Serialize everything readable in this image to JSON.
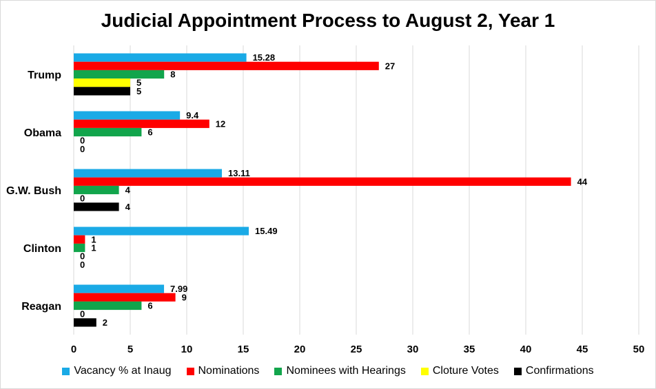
{
  "chart_data": {
    "type": "bar",
    "orientation": "horizontal",
    "title": "Judicial Appointment Process to August 2, Year 1",
    "categories": [
      "Trump",
      "Obama",
      "G.W. Bush",
      "Clinton",
      "Reagan"
    ],
    "series": [
      {
        "name": "Vacancy % at Inaug",
        "color": "#1aaae6",
        "values": [
          15.28,
          9.4,
          13.11,
          15.49,
          7.99
        ]
      },
      {
        "name": "Nominations",
        "color": "#ff0000",
        "values": [
          27,
          12,
          44,
          1,
          9
        ]
      },
      {
        "name": "Nominees with Hearings",
        "color": "#12a54c",
        "values": [
          8,
          6,
          4,
          1,
          6
        ]
      },
      {
        "name": "Cloture Votes",
        "color": "#ffff00",
        "values": [
          5,
          0,
          0,
          0,
          0
        ]
      },
      {
        "name": "Confirmations",
        "color": "#000000",
        "values": [
          5,
          0,
          4,
          0,
          2
        ]
      }
    ],
    "data_labels": [
      [
        "15.28",
        "27",
        "8",
        "5",
        "5"
      ],
      [
        "9.4",
        "12",
        "6",
        "0",
        "0"
      ],
      [
        "13.11",
        "44",
        "4",
        "0",
        "4"
      ],
      [
        "15.49",
        "1",
        "1",
        "0",
        "0"
      ],
      [
        "7.99",
        "9",
        "6",
        "0",
        "2"
      ]
    ],
    "xlim": [
      0,
      50
    ],
    "xticks": [
      "0",
      "5",
      "10",
      "15",
      "20",
      "25",
      "30",
      "35",
      "40",
      "45",
      "50"
    ],
    "grid": "vertical",
    "legend_position": "bottom"
  }
}
